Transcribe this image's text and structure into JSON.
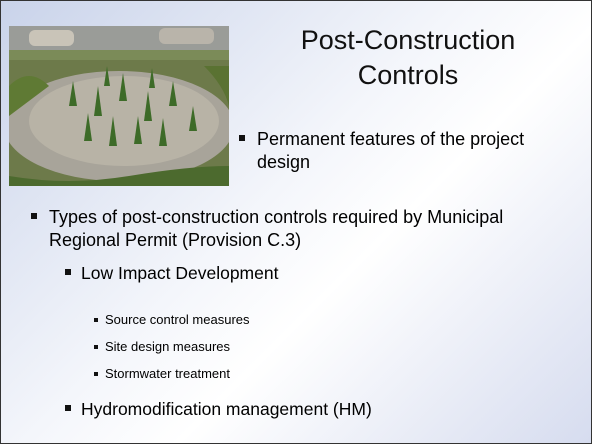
{
  "title": "Post-Construction Controls",
  "intro_bullet": "Permanent features of the project design",
  "bullets": [
    {
      "text": "Types of post-construction controls required by Municipal Regional Permit (Provision C.3)",
      "children": [
        {
          "text": "Low Impact Development",
          "children": [
            "Source control measures",
            "Site design measures",
            "Stormwater treatment"
          ]
        },
        {
          "text": "Hydromodification management (HM)"
        }
      ]
    }
  ]
}
